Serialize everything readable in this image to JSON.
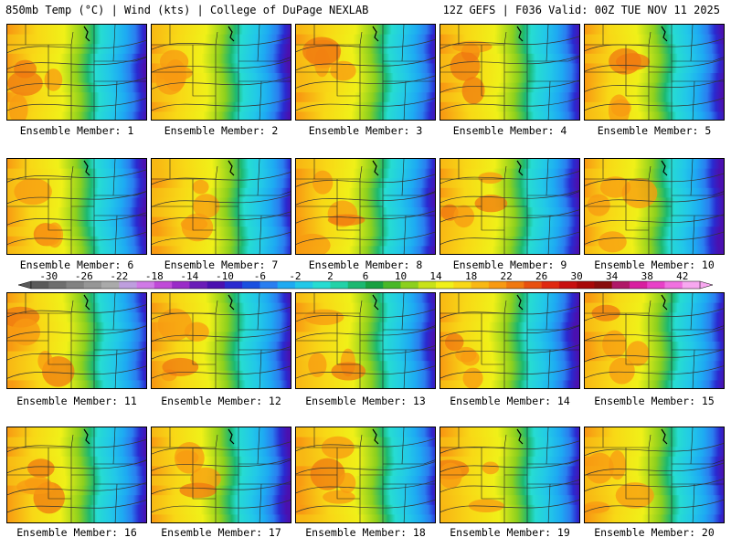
{
  "header": {
    "left": "850mb Temp (°C) | Wind (kts) | College of DuPage NEXLAB",
    "right": "12Z GEFS | F036 Valid: 00Z TUE NOV 11 2025"
  },
  "members": [
    {
      "label": "Ensemble Member: 1"
    },
    {
      "label": "Ensemble Member: 2"
    },
    {
      "label": "Ensemble Member: 3"
    },
    {
      "label": "Ensemble Member: 4"
    },
    {
      "label": "Ensemble Member: 5"
    },
    {
      "label": "Ensemble Member: 6"
    },
    {
      "label": "Ensemble Member: 7"
    },
    {
      "label": "Ensemble Member: 8"
    },
    {
      "label": "Ensemble Member: 9"
    },
    {
      "label": "Ensemble Member: 10"
    },
    {
      "label": "Ensemble Member: 11"
    },
    {
      "label": "Ensemble Member: 12"
    },
    {
      "label": "Ensemble Member: 13"
    },
    {
      "label": "Ensemble Member: 14"
    },
    {
      "label": "Ensemble Member: 15"
    },
    {
      "label": "Ensemble Member: 16"
    },
    {
      "label": "Ensemble Member: 17"
    },
    {
      "label": "Ensemble Member: 18"
    },
    {
      "label": "Ensemble Member: 19"
    },
    {
      "label": "Ensemble Member: 20"
    }
  ],
  "colorbar": {
    "min": -32,
    "max": 44,
    "step": 2,
    "tick_labels": [
      "-30",
      "-26",
      "-22",
      "-18",
      "-14",
      "-10",
      "-6",
      "-2",
      "2",
      "6",
      "10",
      "14",
      "18",
      "22",
      "26",
      "30",
      "34",
      "38",
      "42"
    ],
    "colors": [
      "#5a5a5a",
      "#6e6e6e",
      "#828282",
      "#969696",
      "#aaaaaa",
      "#be9ede",
      "#d07ae6",
      "#c04ad8",
      "#9a2bc8",
      "#6a1cb8",
      "#4a10b0",
      "#2a2ad0",
      "#1a50e0",
      "#2a7ef0",
      "#1eaaf2",
      "#22c8e8",
      "#26dcd2",
      "#22d2a8",
      "#1cb870",
      "#18a040",
      "#48b828",
      "#8cd01e",
      "#c8e218",
      "#f0f018",
      "#f8d816",
      "#f8b814",
      "#f89a12",
      "#f07810",
      "#e85010",
      "#e02810",
      "#c81010",
      "#a80808",
      "#880c0c",
      "#b01868",
      "#d81ea0",
      "#e840c8",
      "#f070e0",
      "#f8a8f0"
    ]
  }
}
